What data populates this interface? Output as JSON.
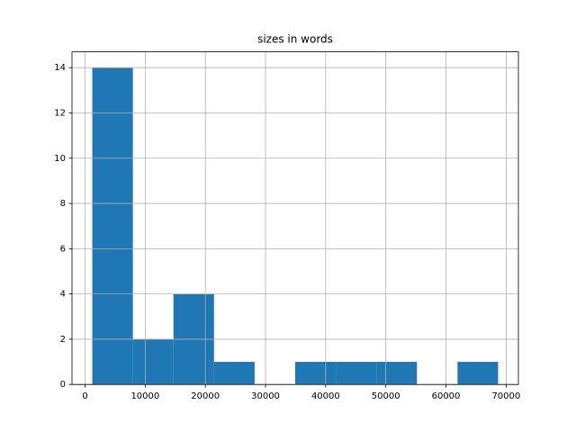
{
  "chart_data": {
    "type": "histogram",
    "title": "sizes in words",
    "bins": [
      1200,
      7947,
      14694,
      21441,
      28188,
      34935,
      41682,
      48429,
      55176,
      61923,
      68670
    ],
    "values": [
      14,
      2,
      4,
      1,
      0,
      1,
      1,
      1,
      0,
      1
    ],
    "color": "#1f77b4",
    "xlim": [
      -2173,
      72043
    ],
    "xticks": [
      0,
      10000,
      20000,
      30000,
      40000,
      50000,
      60000,
      70000
    ],
    "ylim": [
      0,
      14.7
    ],
    "yticks": [
      0,
      2,
      4,
      6,
      8,
      10,
      12,
      14
    ],
    "grid": true
  }
}
